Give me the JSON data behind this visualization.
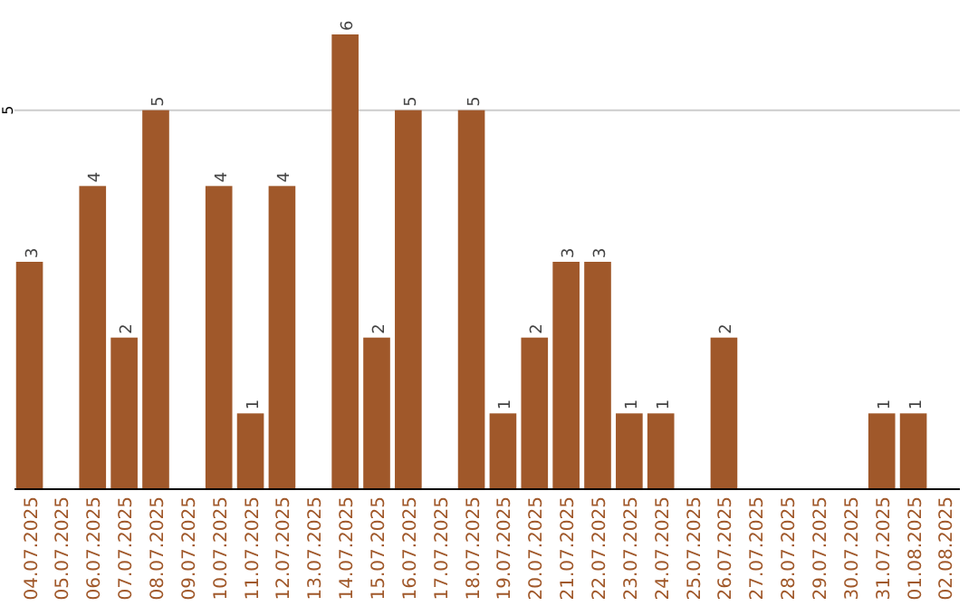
{
  "chart_data": {
    "type": "bar",
    "categories": [
      "04.07.2025",
      "05.07.2025",
      "06.07.2025",
      "07.07.2025",
      "08.07.2025",
      "09.07.2025",
      "10.07.2025",
      "11.07.2025",
      "12.07.2025",
      "13.07.2025",
      "14.07.2025",
      "15.07.2025",
      "16.07.2025",
      "17.07.2025",
      "18.07.2025",
      "19.07.2025",
      "20.07.2025",
      "21.07.2025",
      "22.07.2025",
      "23.07.2025",
      "24.07.2025",
      "25.07.2025",
      "26.07.2025",
      "27.07.2025",
      "28.07.2025",
      "29.07.2025",
      "30.07.2025",
      "31.07.2025",
      "01.08.2025",
      "02.08.2025"
    ],
    "values": [
      3,
      null,
      4,
      2,
      5,
      null,
      4,
      1,
      4,
      null,
      6,
      2,
      5,
      null,
      5,
      1,
      2,
      3,
      3,
      1,
      1,
      null,
      2,
      null,
      null,
      null,
      null,
      1,
      1,
      null
    ],
    "color": "#a0582a",
    "ylim": [
      0,
      6
    ],
    "yticks": [
      5
    ],
    "grid": "y",
    "data_labels": true
  }
}
